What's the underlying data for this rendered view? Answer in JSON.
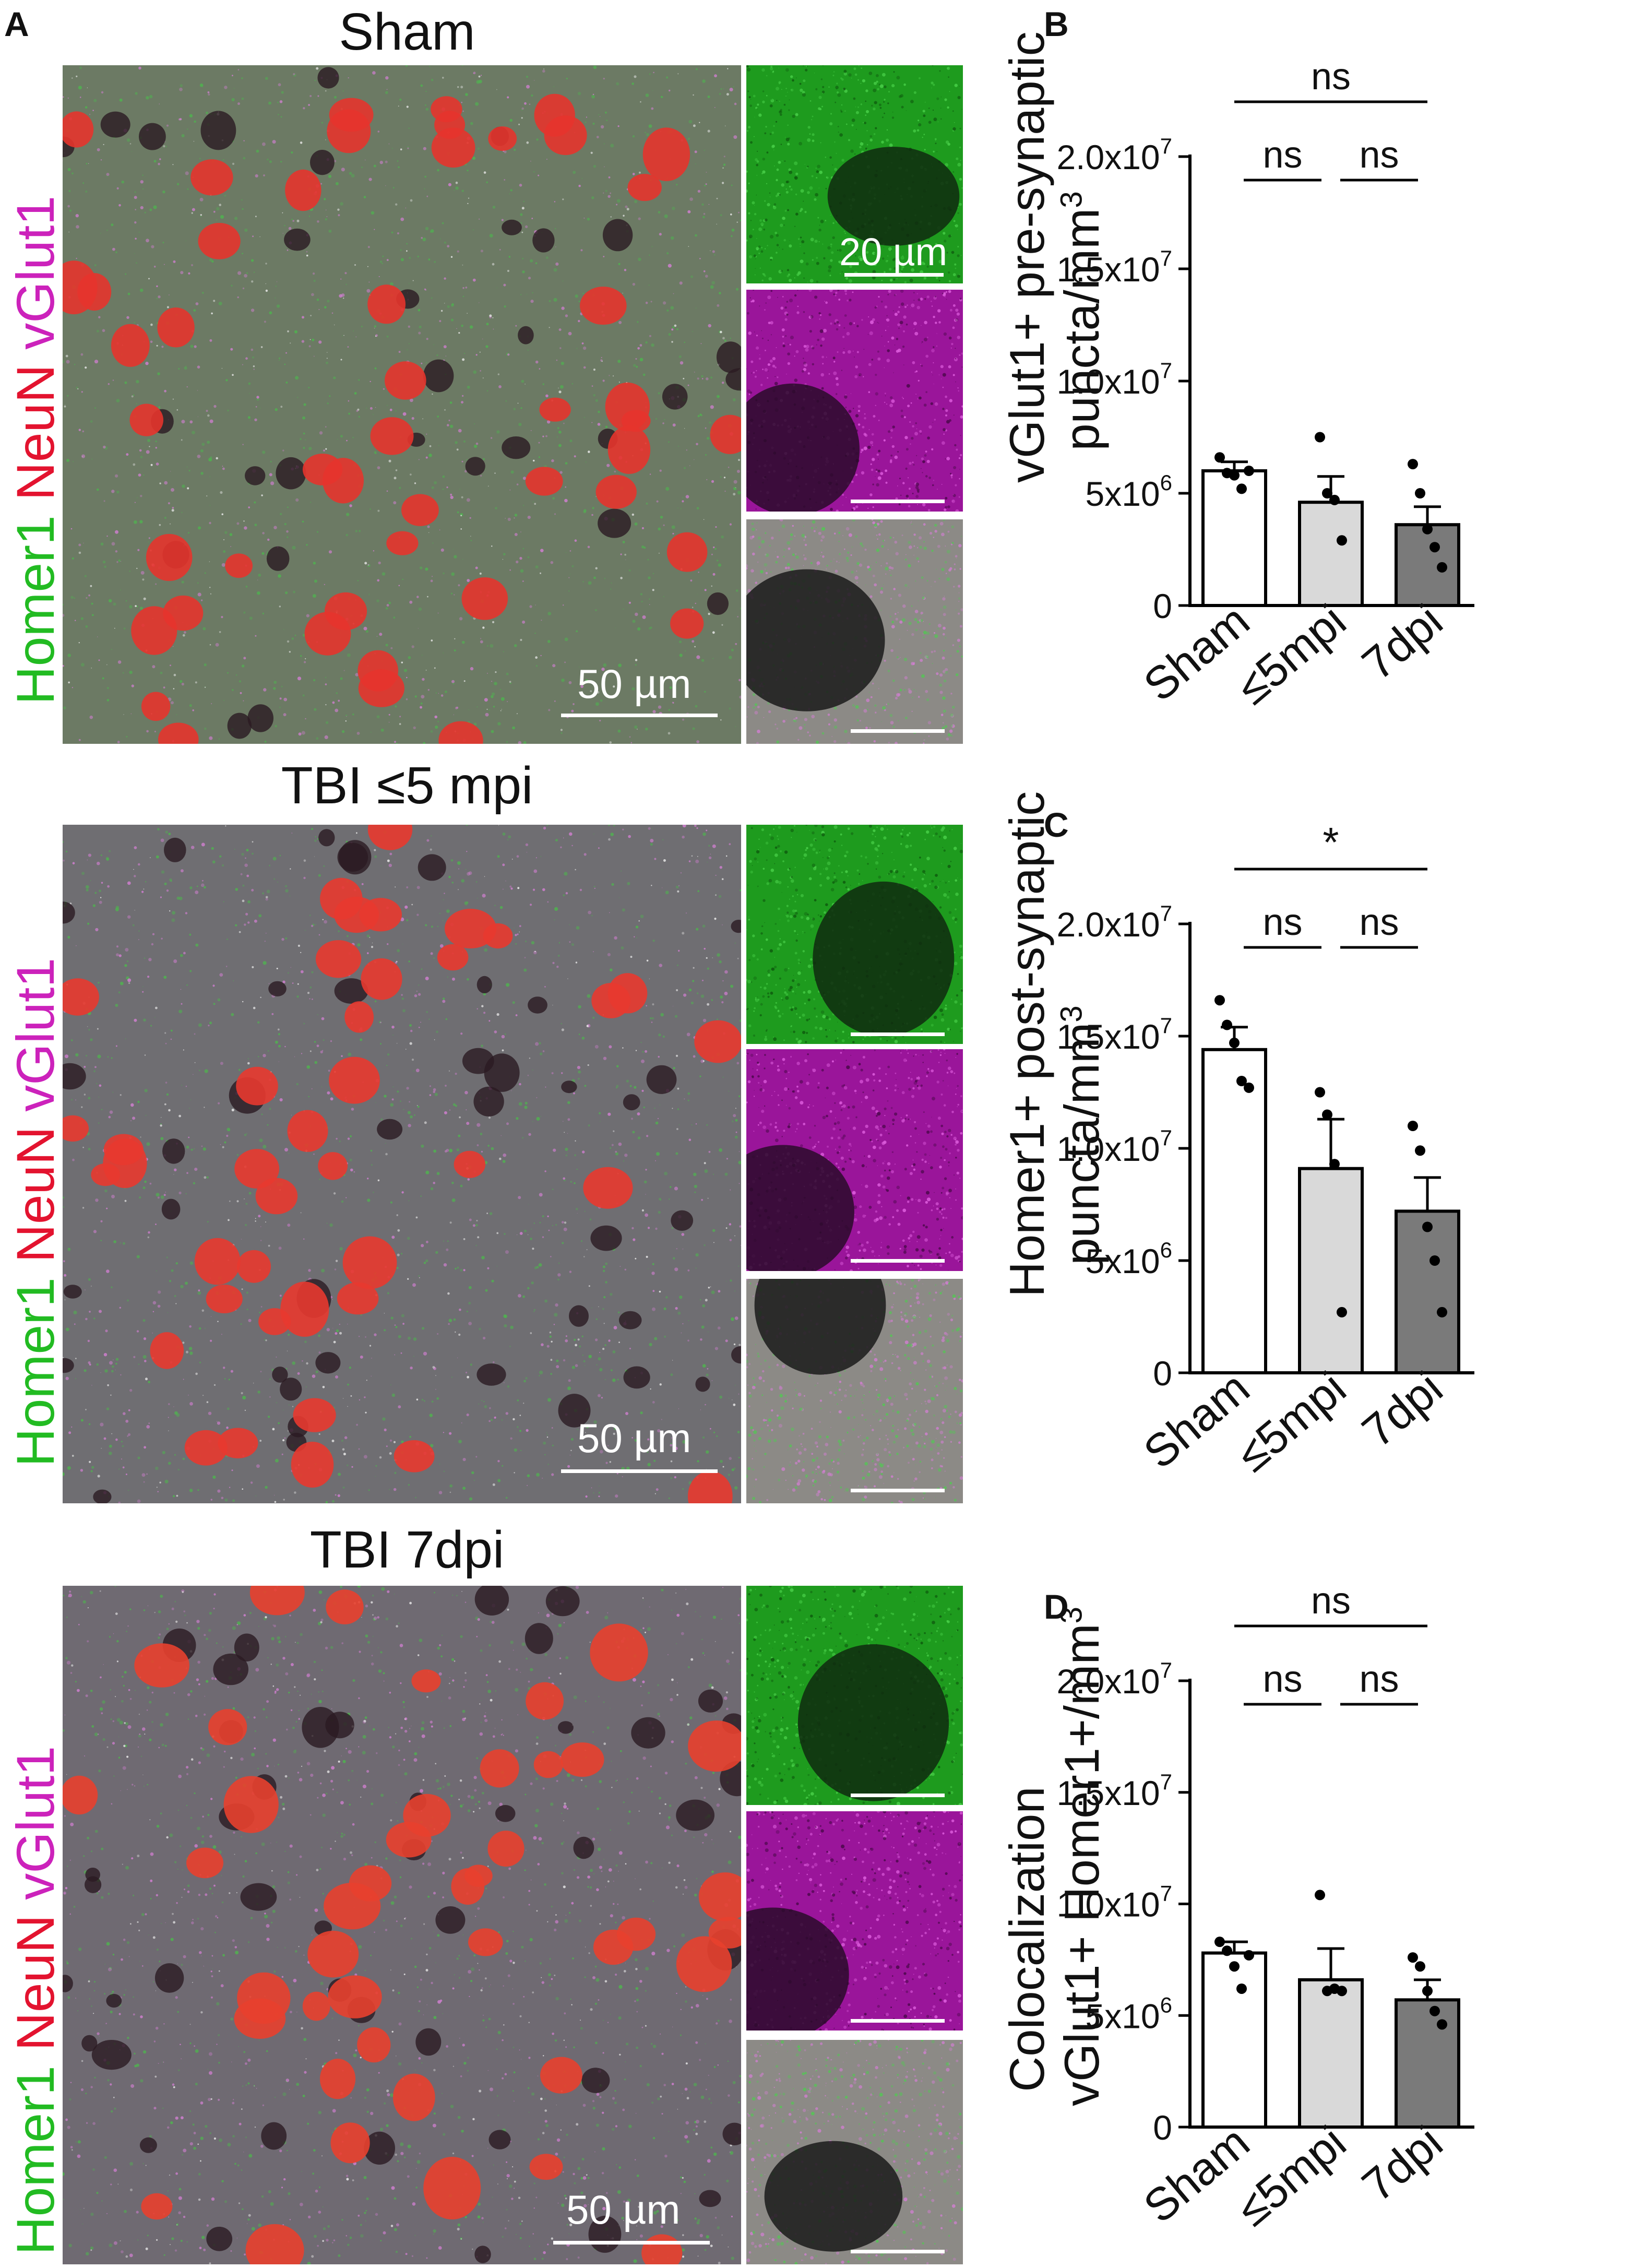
{
  "panel_a": {
    "letter": "A",
    "stain_words": [
      {
        "text": "Homer1",
        "color": "#22bb22"
      },
      {
        "text": "NeuN",
        "color": "#e3132f"
      },
      {
        "text": "vGlut1",
        "color": "#cc22bb"
      }
    ],
    "rows": [
      {
        "title": "Sham",
        "scale_main": "50 µm",
        "scale_inset": "20 µm"
      },
      {
        "title": "TBI ≤5 mpi",
        "scale_main": "50 µm"
      },
      {
        "title": "TBI 7dpi",
        "scale_main": "50 µm"
      }
    ]
  },
  "colors": {
    "sham_bar": "#ffffff",
    "mpi_bar": "#d9d9d9",
    "dpi_bar": "#7a7a7a",
    "axis": "#000000"
  },
  "chart_data": [
    {
      "letter": "B",
      "type": "bar",
      "ylabel_line1": "vGlut1+ pre-synaptic",
      "ylabel_line2": "puncta/mm",
      "ylabel_sup": "3",
      "categories": [
        "Sham",
        "≤5mpi",
        "7dpi"
      ],
      "values": [
        6000000,
        4600000,
        3600000
      ],
      "errors": [
        400000,
        1150000,
        800000
      ],
      "points": [
        [
          6600000,
          5900000,
          5800000,
          5200000,
          6000000
        ],
        [
          7500000,
          5000000,
          4700000,
          2900000
        ],
        [
          6300000,
          5000000,
          3400000,
          2600000,
          1700000
        ]
      ],
      "ylim": [
        0,
        20000000
      ],
      "yticks": [
        {
          "value": 0,
          "base": "0",
          "exp": ""
        },
        {
          "value": 5000000,
          "base": "5x10",
          "exp": "6"
        },
        {
          "value": 10000000,
          "base": "1.0x10",
          "exp": "7"
        },
        {
          "value": 15000000,
          "base": "1.5x10",
          "exp": "7"
        },
        {
          "value": 20000000,
          "base": "2.0x10",
          "exp": "7"
        }
      ],
      "significance": [
        {
          "from": 0,
          "to": 1,
          "label": "ns",
          "level": 1
        },
        {
          "from": 1,
          "to": 2,
          "label": "ns",
          "level": 1
        },
        {
          "from": 0,
          "to": 2,
          "label": "ns",
          "level": 2
        }
      ]
    },
    {
      "letter": "C",
      "type": "bar",
      "ylabel_line1": "Homer1+ post-synaptic",
      "ylabel_line2": "puncta/mm",
      "ylabel_sup": "3",
      "categories": [
        "Sham",
        "≤5mpi",
        "7dpi"
      ],
      "values": [
        14400000,
        9100000,
        7200000
      ],
      "errors": [
        1000000,
        2200000,
        1500000
      ],
      "points": [
        [
          16600000,
          15500000,
          14700000,
          13000000,
          12700000
        ],
        [
          12500000,
          11500000,
          9300000,
          2700000
        ],
        [
          11000000,
          9900000,
          6500000,
          5000000,
          2700000
        ]
      ],
      "ylim": [
        0,
        20000000
      ],
      "yticks": [
        {
          "value": 0,
          "base": "0",
          "exp": ""
        },
        {
          "value": 5000000,
          "base": "5x10",
          "exp": "6"
        },
        {
          "value": 10000000,
          "base": "1.0x10",
          "exp": "7"
        },
        {
          "value": 15000000,
          "base": "1.5x10",
          "exp": "7"
        },
        {
          "value": 20000000,
          "base": "2.0x10",
          "exp": "7"
        }
      ],
      "significance": [
        {
          "from": 0,
          "to": 1,
          "label": "ns",
          "level": 1
        },
        {
          "from": 1,
          "to": 2,
          "label": "ns",
          "level": 1
        },
        {
          "from": 0,
          "to": 2,
          "label": "*",
          "level": 2
        }
      ]
    },
    {
      "letter": "D",
      "type": "bar",
      "ylabel_line1": "Colocalization",
      "ylabel_line2": "vGlut1+ Homer1+/mm",
      "ylabel_sup": "3",
      "categories": [
        "Sham",
        "≤5mpi",
        "7dpi"
      ],
      "values": [
        7800000,
        6600000,
        5700000
      ],
      "errors": [
        500000,
        1400000,
        900000
      ],
      "points": [
        [
          8300000,
          7900000,
          7200000,
          6200000,
          7700000
        ],
        [
          10400000,
          6100000,
          6200000,
          6100000
        ],
        [
          7600000,
          7200000,
          6100000,
          5200000,
          4600000
        ]
      ],
      "ylim": [
        0,
        20000000
      ],
      "yticks": [
        {
          "value": 0,
          "base": "0",
          "exp": ""
        },
        {
          "value": 5000000,
          "base": "5x10",
          "exp": "6"
        },
        {
          "value": 10000000,
          "base": "1.0x10",
          "exp": "7"
        },
        {
          "value": 15000000,
          "base": "1.5x10",
          "exp": "7"
        },
        {
          "value": 20000000,
          "base": "2.0x10",
          "exp": "7"
        }
      ],
      "significance": [
        {
          "from": 0,
          "to": 1,
          "label": "ns",
          "level": 1
        },
        {
          "from": 1,
          "to": 2,
          "label": "ns",
          "level": 1
        },
        {
          "from": 0,
          "to": 2,
          "label": "ns",
          "level": 2
        }
      ]
    }
  ]
}
